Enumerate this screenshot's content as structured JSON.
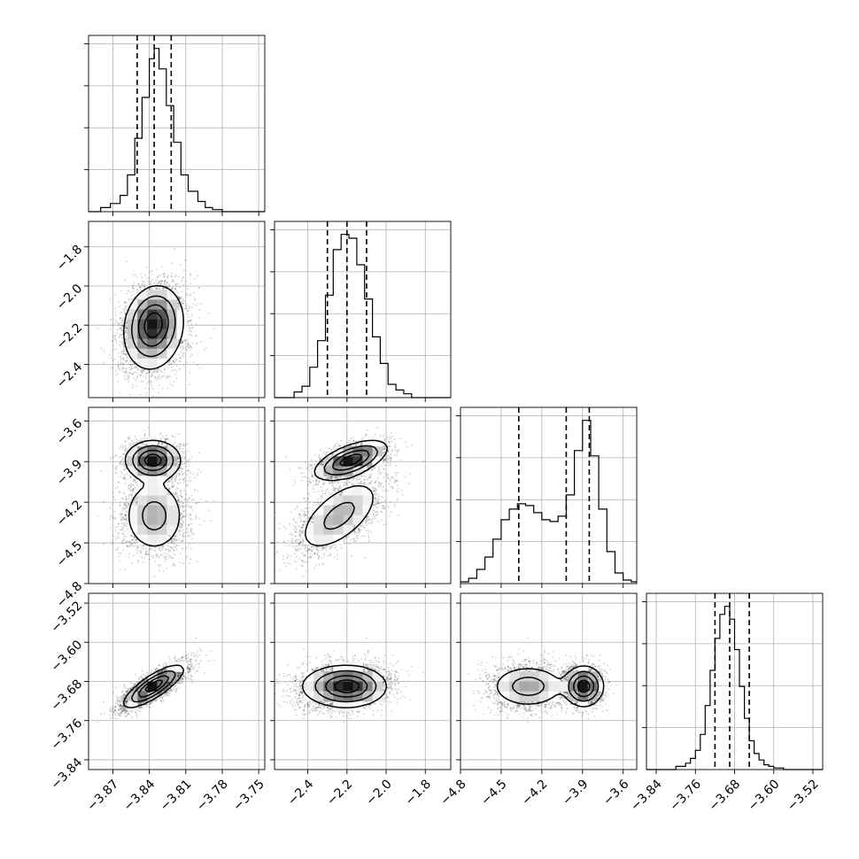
{
  "chart_data": {
    "type": "corner",
    "parameters": [
      {
        "range": [
          -3.89,
          -3.745
        ],
        "ticks": [
          -3.87,
          -3.84,
          -3.81,
          -3.78,
          -3.75
        ],
        "ticklabels": [
          "−3.87",
          "−3.84",
          "−3.81",
          "−3.78",
          "−3.75"
        ]
      },
      {
        "range": [
          -2.57,
          -1.67
        ],
        "ticks": [
          -2.4,
          -2.2,
          -2.0,
          -1.8
        ],
        "ticklabels": [
          "−2.4",
          "−2.2",
          "−2.0",
          "−1.8"
        ]
      },
      {
        "range": [
          -4.8,
          -3.5
        ],
        "ticks": [
          -4.8,
          -4.5,
          -4.2,
          -3.9,
          -3.6
        ],
        "ticklabels": [
          "−4.8",
          "−4.5",
          "−4.2",
          "−3.9",
          "−3.6"
        ]
      },
      {
        "range": [
          -3.86,
          -3.5
        ],
        "ticks": [
          -3.84,
          -3.76,
          -3.68,
          -3.6,
          -3.52
        ],
        "ticklabels": [
          "−3.84",
          "−3.76",
          "−3.68",
          "−3.60",
          "−3.52"
        ]
      }
    ],
    "quantiles": [
      [
        -3.85,
        -3.836,
        -3.822
      ],
      [
        -2.3,
        -2.2,
        -2.1
      ],
      [
        -4.37,
        -4.02,
        -3.85
      ],
      [
        -3.72,
        -3.69,
        -3.65
      ]
    ],
    "histograms": [
      {
        "bin_edges": [
          -3.89,
          -3.88,
          -3.872,
          -3.864,
          -3.858,
          -3.852,
          -3.846,
          -3.84,
          -3.836,
          -3.832,
          -3.826,
          -3.82,
          -3.814,
          -3.808,
          -3.8,
          -3.794,
          -3.788,
          -3.78,
          -3.772,
          -3.745
        ],
        "counts": [
          0,
          2,
          4,
          8,
          18,
          36,
          56,
          75,
          80,
          70,
          52,
          34,
          18,
          10,
          5,
          2,
          1,
          0,
          0
        ]
      },
      {
        "bin_edges": [
          -2.57,
          -2.47,
          -2.43,
          -2.39,
          -2.35,
          -2.31,
          -2.27,
          -2.23,
          -2.19,
          -2.15,
          -2.11,
          -2.07,
          -2.03,
          -1.99,
          -1.95,
          -1.91,
          -1.87,
          -1.67
        ],
        "counts": [
          0,
          3,
          6,
          16,
          30,
          54,
          78,
          86,
          84,
          70,
          52,
          32,
          18,
          7,
          4,
          2,
          0
        ]
      },
      {
        "bin_edges": [
          -4.8,
          -4.74,
          -4.68,
          -4.62,
          -4.56,
          -4.5,
          -4.44,
          -4.38,
          -4.32,
          -4.26,
          -4.2,
          -4.14,
          -4.08,
          -4.02,
          -3.96,
          -3.9,
          -3.84,
          -3.78,
          -3.72,
          -3.66,
          -3.6,
          -3.54,
          -3.5
        ],
        "counts": [
          1,
          3,
          8,
          15,
          25,
          36,
          42,
          45,
          44,
          40,
          36,
          35,
          38,
          50,
          75,
          92,
          72,
          42,
          18,
          6,
          2,
          1
        ]
      },
      {
        "bin_edges": [
          -3.86,
          -3.8,
          -3.78,
          -3.77,
          -3.76,
          -3.75,
          -3.74,
          -3.73,
          -3.72,
          -3.71,
          -3.7,
          -3.69,
          -3.68,
          -3.67,
          -3.66,
          -3.65,
          -3.64,
          -3.63,
          -3.62,
          -3.61,
          -3.6,
          -3.58,
          -3.56,
          -3.5
        ],
        "counts": [
          0,
          2,
          4,
          7,
          12,
          22,
          40,
          62,
          82,
          97,
          102,
          94,
          75,
          52,
          32,
          18,
          10,
          6,
          3,
          2,
          1,
          0,
          0
        ]
      }
    ],
    "grid": true
  }
}
